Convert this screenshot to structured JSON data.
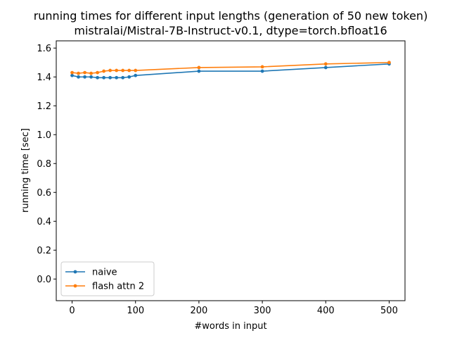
{
  "chart_data": {
    "type": "line",
    "title": [
      "running times for different input lengths (generation of 50 new token)",
      "mistralai/Mistral-7B-Instruct-v0.1, dtype=torch.bfloat16"
    ],
    "xlabel": "#words in input",
    "ylabel": "running time [sec]",
    "xlim": [
      -25,
      525
    ],
    "ylim": [
      -0.15,
      1.65
    ],
    "xticks": [
      0,
      100,
      200,
      300,
      400,
      500
    ],
    "yticks": [
      0.0,
      0.2,
      0.4,
      0.6,
      0.8,
      1.0,
      1.2,
      1.4,
      1.6
    ],
    "xtick_labels": [
      "0",
      "100",
      "200",
      "300",
      "400",
      "500"
    ],
    "ytick_labels": [
      "0.0",
      "0.2",
      "0.4",
      "0.6",
      "0.8",
      "1.0",
      "1.2",
      "1.4",
      "1.6"
    ],
    "legend_position": "lower-left",
    "grid": false,
    "series": [
      {
        "name": "naive",
        "color": "#1f77b4",
        "marker": "dot",
        "x": [
          0,
          10,
          20,
          30,
          40,
          50,
          60,
          70,
          80,
          90,
          100,
          200,
          300,
          400,
          500
        ],
        "y": [
          1.41,
          1.4,
          1.4,
          1.4,
          1.395,
          1.395,
          1.395,
          1.395,
          1.395,
          1.4,
          1.41,
          1.44,
          1.44,
          1.465,
          1.49
        ]
      },
      {
        "name": "flash attn 2",
        "color": "#ff7f0e",
        "marker": "dot",
        "x": [
          0,
          10,
          20,
          30,
          40,
          50,
          60,
          70,
          80,
          90,
          100,
          200,
          300,
          400,
          500
        ],
        "y": [
          1.43,
          1.425,
          1.43,
          1.425,
          1.43,
          1.44,
          1.445,
          1.445,
          1.445,
          1.445,
          1.445,
          1.465,
          1.47,
          1.49,
          1.5
        ]
      }
    ]
  }
}
